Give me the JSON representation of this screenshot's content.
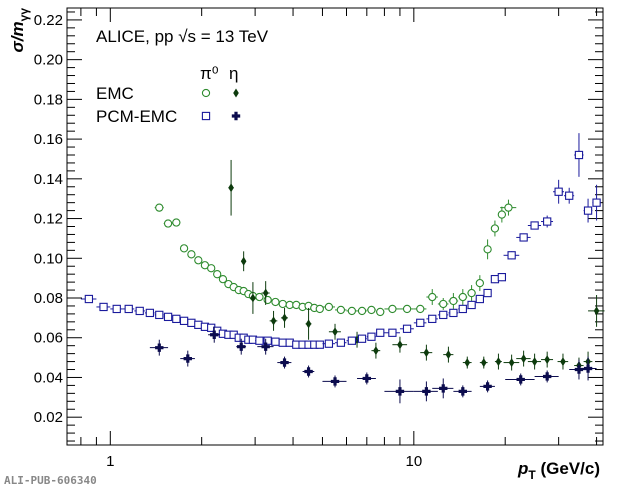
{
  "footer": "ALI-PUB-606340",
  "chart_data": {
    "type": "scatter",
    "title": "ALICE, pp √s = 13 TeV",
    "xlabel": {
      "main": "p",
      "sub": "T",
      "unit": "(GeV/c)"
    },
    "ylabel": {
      "main": "σ/m",
      "sub": "γγ"
    },
    "xscale": "log",
    "xlim": [
      0.72,
      42
    ],
    "ylim": [
      0.006,
      0.226
    ],
    "x_ticks": [
      {
        "value": 1,
        "label": "1"
      },
      {
        "value": 10,
        "label": "10"
      }
    ],
    "y_ticks": [
      0.02,
      0.04,
      0.06,
      0.08,
      0.1,
      0.12,
      0.14,
      0.16,
      0.18,
      0.2,
      0.22
    ],
    "y_tick_labels": [
      "0.02",
      "0.04",
      "0.06",
      "0.08",
      "0.10",
      "0.12",
      "0.14",
      "0.16",
      "0.18",
      "0.20",
      "0.22"
    ],
    "legend": {
      "placement": "top-left",
      "column_headers": [
        "π⁰",
        "η"
      ],
      "rows": [
        {
          "label": "EMC",
          "series": [
            "EMC π0",
            "EMC η"
          ]
        },
        {
          "label": "PCM-EMC",
          "series": [
            "PCM-EMC π0",
            "PCM-EMC η"
          ]
        }
      ]
    },
    "series": [
      {
        "name": "EMC π0",
        "color": "#2e8b2e",
        "marker": "open-circle",
        "points": [
          [
            1.45,
            0.1255,
            0.002
          ],
          [
            1.55,
            0.1175,
            0.002
          ],
          [
            1.65,
            0.118,
            0.002
          ],
          [
            1.75,
            0.105,
            0.001
          ],
          [
            1.85,
            0.102,
            0.001
          ],
          [
            1.95,
            0.099,
            0.001
          ],
          [
            2.05,
            0.0965,
            0.001
          ],
          [
            2.15,
            0.095,
            0.001
          ],
          [
            2.25,
            0.092,
            0.001
          ],
          [
            2.35,
            0.0895,
            0.001
          ],
          [
            2.45,
            0.087,
            0.001
          ],
          [
            2.55,
            0.0855,
            0.001
          ],
          [
            2.65,
            0.084,
            0.001
          ],
          [
            2.75,
            0.0835,
            0.001
          ],
          [
            2.85,
            0.082,
            0.001
          ],
          [
            2.95,
            0.081,
            0.001
          ],
          [
            3.1,
            0.0805,
            0.001
          ],
          [
            3.3,
            0.079,
            0.001
          ],
          [
            3.5,
            0.078,
            0.001
          ],
          [
            3.7,
            0.077,
            0.001
          ],
          [
            3.9,
            0.0765,
            0.001
          ],
          [
            4.1,
            0.0765,
            0.001
          ],
          [
            4.3,
            0.0755,
            0.001
          ],
          [
            4.5,
            0.076,
            0.001
          ],
          [
            4.7,
            0.075,
            0.001
          ],
          [
            4.9,
            0.0745,
            0.001
          ],
          [
            5.25,
            0.0755,
            0.001
          ],
          [
            5.75,
            0.074,
            0.001
          ],
          [
            6.25,
            0.0735,
            0.001
          ],
          [
            6.75,
            0.0735,
            0.002
          ],
          [
            7.25,
            0.074,
            0.002
          ],
          [
            7.75,
            0.073,
            0.002
          ],
          [
            8.5,
            0.0745,
            0.002
          ],
          [
            9.5,
            0.0745,
            0.002
          ],
          [
            10.5,
            0.0745,
            0.002
          ],
          [
            11.5,
            0.0805,
            0.004
          ],
          [
            12.5,
            0.077,
            0.003
          ],
          [
            13.5,
            0.0785,
            0.004
          ],
          [
            14.5,
            0.0805,
            0.004
          ],
          [
            15.5,
            0.0825,
            0.004
          ],
          [
            16.5,
            0.0875,
            0.004
          ],
          [
            17.5,
            0.1045,
            0.005
          ],
          [
            18.5,
            0.115,
            0.004
          ],
          [
            19.5,
            0.122,
            0.004
          ],
          [
            20.5,
            0.1255,
            0.004
          ]
        ]
      },
      {
        "name": "EMC η",
        "color": "#0d3b0d",
        "marker": "diamond",
        "points": [
          [
            2.5,
            0.1355,
            0.014
          ],
          [
            2.75,
            0.0985,
            0.005
          ],
          [
            2.95,
            0.08,
            0.008
          ],
          [
            3.25,
            0.0825,
            0.006
          ],
          [
            3.45,
            0.0685,
            0.005
          ],
          [
            3.75,
            0.07,
            0.005
          ],
          [
            4.5,
            0.067,
            0.008
          ],
          [
            5.5,
            0.063,
            0.004
          ],
          [
            6.5,
            0.059,
            0.004
          ],
          [
            7.5,
            0.0535,
            0.004
          ],
          [
            9.0,
            0.0565,
            0.004
          ],
          [
            11.0,
            0.0525,
            0.004
          ],
          [
            13.0,
            0.0515,
            0.004
          ],
          [
            15.0,
            0.0475,
            0.003
          ],
          [
            17.0,
            0.0475,
            0.003
          ],
          [
            19.0,
            0.048,
            0.004
          ],
          [
            21.0,
            0.0475,
            0.004
          ],
          [
            23.0,
            0.0495,
            0.004
          ],
          [
            25.0,
            0.048,
            0.004
          ],
          [
            27.5,
            0.049,
            0.004
          ],
          [
            31.0,
            0.048,
            0.004
          ],
          [
            35.0,
            0.046,
            0.004
          ],
          [
            37.5,
            0.048,
            0.005
          ]
        ]
      },
      {
        "name": "PCM-EMC π0",
        "color": "#1a1a9c",
        "marker": "open-square",
        "points": [
          [
            0.85,
            0.0795,
            0.002
          ],
          [
            0.95,
            0.0755,
            0.001
          ],
          [
            1.05,
            0.0745,
            0.001
          ],
          [
            1.15,
            0.0745,
            0.001
          ],
          [
            1.25,
            0.0735,
            0.001
          ],
          [
            1.35,
            0.0725,
            0.001
          ],
          [
            1.45,
            0.0715,
            0.001
          ],
          [
            1.55,
            0.0705,
            0.001
          ],
          [
            1.65,
            0.0695,
            0.001
          ],
          [
            1.75,
            0.0685,
            0.001
          ],
          [
            1.85,
            0.0675,
            0.001
          ],
          [
            1.95,
            0.0665,
            0.001
          ],
          [
            2.05,
            0.0655,
            0.001
          ],
          [
            2.15,
            0.065,
            0.001
          ],
          [
            2.25,
            0.0635,
            0.001
          ],
          [
            2.35,
            0.062,
            0.001
          ],
          [
            2.45,
            0.0615,
            0.001
          ],
          [
            2.55,
            0.0615,
            0.001
          ],
          [
            2.65,
            0.06,
            0.001
          ],
          [
            2.75,
            0.06,
            0.001
          ],
          [
            2.85,
            0.059,
            0.001
          ],
          [
            2.95,
            0.059,
            0.001
          ],
          [
            3.1,
            0.0585,
            0.001
          ],
          [
            3.3,
            0.0585,
            0.001
          ],
          [
            3.5,
            0.058,
            0.001
          ],
          [
            3.7,
            0.0575,
            0.001
          ],
          [
            3.9,
            0.0575,
            0.001
          ],
          [
            4.1,
            0.0565,
            0.001
          ],
          [
            4.3,
            0.0565,
            0.001
          ],
          [
            4.5,
            0.0565,
            0.001
          ],
          [
            4.7,
            0.0565,
            0.001
          ],
          [
            4.9,
            0.0565,
            0.001
          ],
          [
            5.25,
            0.057,
            0.001
          ],
          [
            5.75,
            0.0575,
            0.001
          ],
          [
            6.25,
            0.0585,
            0.001
          ],
          [
            6.75,
            0.0595,
            0.001
          ],
          [
            7.25,
            0.0605,
            0.001
          ],
          [
            7.75,
            0.0625,
            0.001
          ],
          [
            8.5,
            0.0625,
            0.001
          ],
          [
            9.5,
            0.0645,
            0.001
          ],
          [
            10.5,
            0.0675,
            0.001
          ],
          [
            11.5,
            0.0695,
            0.001
          ],
          [
            12.5,
            0.0715,
            0.001
          ],
          [
            13.5,
            0.0725,
            0.001
          ],
          [
            14.5,
            0.0745,
            0.001
          ],
          [
            15.5,
            0.0765,
            0.001
          ],
          [
            16.5,
            0.0795,
            0.001
          ],
          [
            17.5,
            0.0825,
            0.001
          ],
          [
            18.5,
            0.0895,
            0.002
          ],
          [
            19.5,
            0.0905,
            0.002
          ],
          [
            21.0,
            0.1015,
            0.002
          ],
          [
            23.0,
            0.1105,
            0.002
          ],
          [
            25.0,
            0.1165,
            0.002
          ],
          [
            27.5,
            0.1185,
            0.003
          ],
          [
            30.0,
            0.1335,
            0.006
          ],
          [
            32.5,
            0.1315,
            0.004
          ],
          [
            35.0,
            0.152,
            0.011
          ],
          [
            37.5,
            0.124,
            0.006
          ],
          [
            40.0,
            0.128,
            0.009
          ]
        ]
      },
      {
        "name": "PCM-EMC η",
        "color": "#0c0c4e",
        "marker": "cross",
        "points": [
          [
            1.45,
            0.055,
            0.004
          ],
          [
            1.8,
            0.0495,
            0.004
          ],
          [
            2.2,
            0.0615,
            0.004
          ],
          [
            2.7,
            0.0555,
            0.004
          ],
          [
            3.25,
            0.0555,
            0.004
          ],
          [
            3.75,
            0.0475,
            0.003
          ],
          [
            4.5,
            0.043,
            0.003
          ],
          [
            5.5,
            0.038,
            0.003
          ],
          [
            7.0,
            0.0395,
            0.003
          ],
          [
            9.0,
            0.033,
            0.006
          ],
          [
            11.0,
            0.033,
            0.005
          ],
          [
            12.5,
            0.0345,
            0.005
          ],
          [
            14.5,
            0.033,
            0.003
          ],
          [
            17.5,
            0.0355,
            0.003
          ],
          [
            22.5,
            0.039,
            0.003
          ],
          [
            27.5,
            0.0405,
            0.003
          ],
          [
            35.0,
            0.044,
            0.005
          ],
          [
            37.5,
            0.0445,
            0.006
          ]
        ]
      }
    ],
    "extra_point": {
      "series": "EMC η",
      "x": 40.0,
      "y": 0.0735,
      "err": 0.008
    }
  }
}
